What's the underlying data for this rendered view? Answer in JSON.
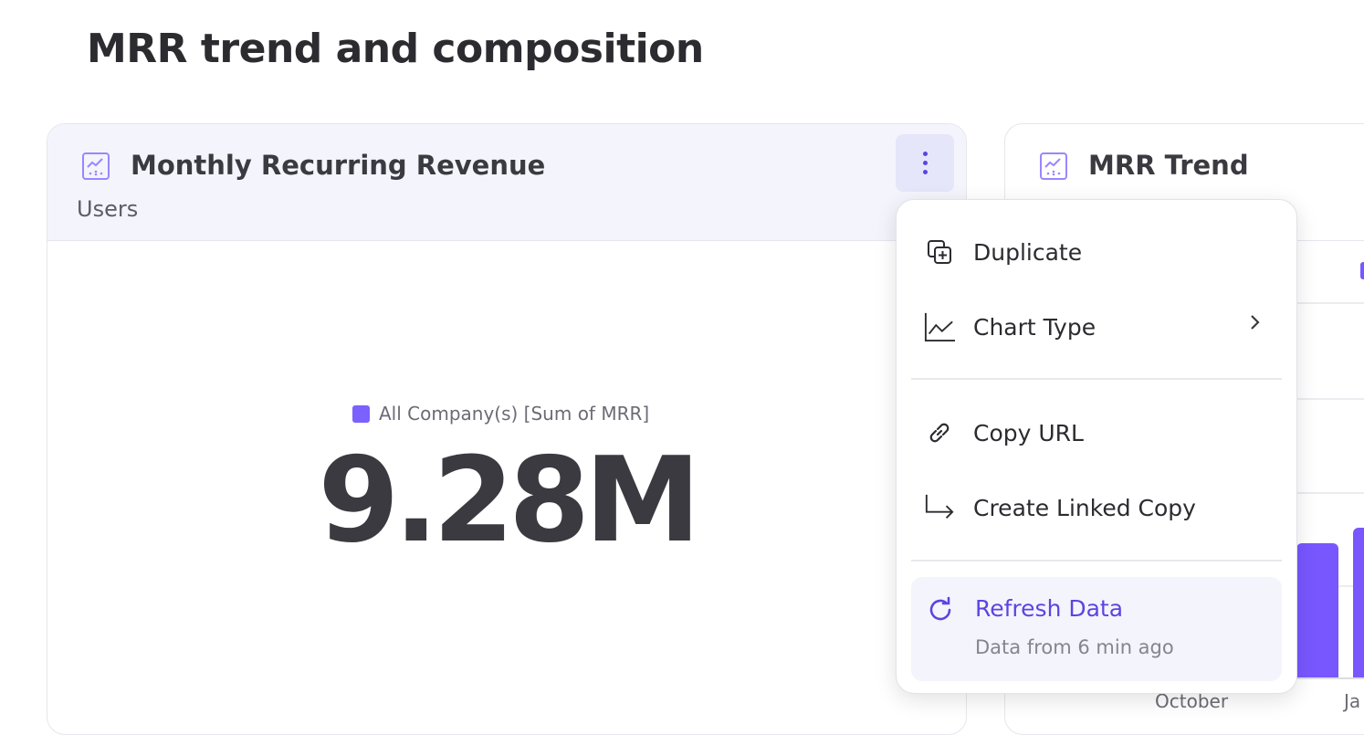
{
  "page": {
    "title": "MRR trend and composition"
  },
  "cards": [
    {
      "title": "Monthly Recurring Revenue",
      "subtitle": "Users",
      "icon": "line-chart-icon",
      "legend": "All Company(s) [Sum of MRR]",
      "value": "9.28M"
    },
    {
      "title": "MRR Trend",
      "icon": "line-chart-icon",
      "x_labels": [
        "October",
        "Ja"
      ]
    }
  ],
  "menu": {
    "items": [
      {
        "label": "Duplicate",
        "icon": "duplicate-icon"
      },
      {
        "label": "Chart Type",
        "icon": "line-chart-icon",
        "submenu": true
      },
      {
        "label": "Copy URL",
        "icon": "link-icon"
      },
      {
        "label": "Create Linked Copy",
        "icon": "arrow-turn-right-icon"
      }
    ],
    "refresh": {
      "label": "Refresh Data",
      "status": "Data from 6 min ago",
      "icon": "refresh-icon"
    }
  },
  "colors": {
    "accent": "#7857ff",
    "header_bg": "#f4f4fc",
    "link": "#5b45e0"
  }
}
